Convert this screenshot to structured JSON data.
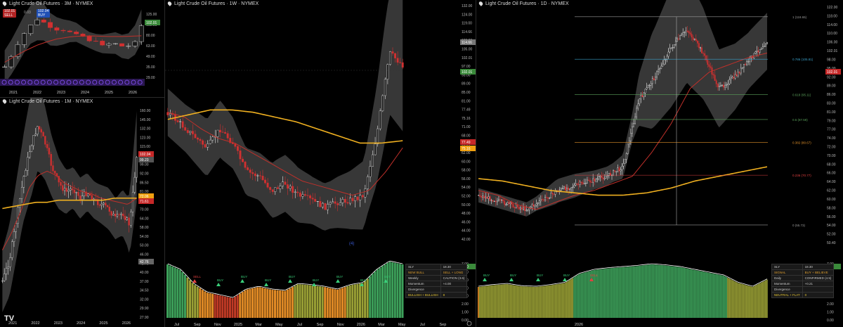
{
  "panels": {
    "q3": {
      "title": "Light Crude Oil Futures · 3M · NYMEX",
      "yticks": [
        "125.00",
        "102.01",
        "80.00",
        "63.00",
        "49.00",
        "35.00",
        "29.00"
      ],
      "xticks": [
        "2021",
        "2022",
        "2023",
        "2024",
        "2025",
        "2026"
      ],
      "sell": "102.01",
      "sell_label": "SELL",
      "buy": "102.04",
      "buy_label": "BUY",
      "spread": "0.03",
      "last": "102.01"
    },
    "m1": {
      "title": "Light Crude Oil Futures · 1M · NYMEX",
      "yticks": [
        "160.00",
        "145.00",
        "132.00",
        "123.00",
        "115.00",
        "107.00",
        "99.00",
        "92.00",
        "86.50",
        "81.00",
        "75.00",
        "70.00",
        "64.00",
        "58.00",
        "54.00",
        "50.00",
        "46.00",
        "42.75",
        "40.00",
        "37.00",
        "34.50",
        "32.00",
        "29.90",
        "27.90"
      ],
      "xticks": [
        "2021",
        "2022",
        "2023",
        "2024",
        "2025",
        "2026"
      ],
      "last": "102.04",
      "b1": "99.23",
      "b2": "72.06",
      "b3": "71.61",
      "b4": "42.76"
    },
    "w1": {
      "title": "Light Crude Oil Futures · 1W · NYMEX",
      "yticks": [
        "132.00",
        "124.00",
        "119.00",
        "114.66",
        "109.00",
        "105.00",
        "102.01",
        "97.00",
        "93.00",
        "89.00",
        "85.00",
        "81.00",
        "77.49",
        "75.16",
        "71.00",
        "68.00",
        "65.00",
        "62.00",
        "60.00",
        "58.00",
        "56.00",
        "54.00",
        "52.00",
        "50.00",
        "48.00",
        "46.00",
        "44.00",
        "42.00"
      ],
      "xticks": [
        "Jul",
        "Sep",
        "Nov",
        "2025",
        "Mar",
        "May",
        "Jul",
        "Sep",
        "Nov",
        "2026",
        "Mar",
        "May",
        "Jul",
        "Sep"
      ],
      "osc_ticks": [
        "7.00",
        "6.00",
        "5.00",
        "4.00",
        "3.00",
        "2.00",
        "1.00",
        "0.00"
      ],
      "last": "102.01",
      "hi": "114.66",
      "b1": "77.49",
      "b2": "75.16",
      "osc_last": "6.00",
      "wave": "(4)",
      "signals": [
        "SELL",
        "BUY",
        "BUY",
        "BUY",
        "BUY",
        "BUY",
        "BUY",
        "BUY",
        "BUY"
      ],
      "table": [
        [
          "SLY",
          "18.30"
        ],
        [
          "NEW BULL",
          "SELL + LONG"
        ],
        [
          "Weekly",
          "CAUTION (3.6)"
        ],
        [
          "Momentum",
          "+4.00"
        ],
        [
          "Divergence",
          ""
        ],
        [
          "BULLISH + BULLISH",
          "8"
        ]
      ]
    },
    "d1": {
      "title": "Light Crude Oil Futures · 1D · NYMEX",
      "yticks": [
        "122.00",
        "118.00",
        "114.00",
        "110.00",
        "106.00",
        "102.01",
        "98.00",
        "95.00",
        "92.00",
        "89.00",
        "86.00",
        "83.00",
        "81.00",
        "79.00",
        "77.00",
        "74.00",
        "72.00",
        "70.00",
        "68.00",
        "66.00",
        "64.00",
        "62.00",
        "60.00",
        "58.00",
        "56.00",
        "54.00",
        "52.00",
        "50.40"
      ],
      "xticks": [
        "2026"
      ],
      "osc_ticks": [
        "7.00",
        "6.00",
        "5.00",
        "4.00",
        "3.00",
        "2.00",
        "1.00",
        "0.00"
      ],
      "last": "102.01",
      "osc_last": "6.00",
      "fib": [
        {
          "label": "1 (118.65)",
          "v": 118.65,
          "c": "#9a9a9a"
        },
        {
          "label": "0.786 (105.81)",
          "v": 105.81,
          "c": "#3aa0c8"
        },
        {
          "label": "0.618 (95.11)",
          "v": 95.11,
          "c": "#5aa05a"
        },
        {
          "label": "0.5 (87.59)",
          "v": 87.59,
          "c": "#5aa05a"
        },
        {
          "label": "0.382 (80.67)",
          "v": 80.67,
          "c": "#e0902a"
        },
        {
          "label": "0.236 (70.77)",
          "v": 70.77,
          "c": "#e04040"
        },
        {
          "label": "0 (55.73)",
          "v": 55.73,
          "c": "#9a9a9a"
        }
      ],
      "signals": [
        "BUY",
        "BUY",
        "BUY",
        "BUY",
        "SELL"
      ],
      "table": [
        [
          "SLY",
          "18.30"
        ],
        [
          "SIGNAL",
          "BUY + BELIEVE"
        ],
        [
          "Daily",
          "CONFIRMED (4.5)"
        ],
        [
          "Momentum",
          "+0.21"
        ],
        [
          "Divergence",
          ""
        ],
        [
          "NEUTRAL + FLAT",
          "0"
        ]
      ]
    }
  },
  "chart_data": [
    {
      "type": "candlestick",
      "title": "Light Crude Oil Futures · 3M · NYMEX",
      "x": [
        "2021",
        "2022",
        "2023",
        "2024",
        "2025",
        "2026"
      ],
      "close": [
        75,
        80,
        72,
        72,
        62,
        102
      ],
      "last": 102.01
    },
    {
      "type": "candlestick",
      "title": "Light Crude Oil Futures · 1M · NYMEX",
      "x": [
        "2021",
        "2022",
        "2023",
        "2024",
        "2025",
        "2026"
      ],
      "close": [
        62,
        80,
        75,
        72,
        60,
        102
      ],
      "last": 102.04
    },
    {
      "type": "candlestick",
      "title": "Light Crude Oil Futures · 1W · NYMEX",
      "x": [
        "Jul",
        "Sep",
        "Nov",
        "2025",
        "Mar",
        "May",
        "Jul",
        "Sep",
        "Nov",
        "2026",
        "Mar",
        "May"
      ],
      "close": [
        82,
        73,
        69,
        72,
        67,
        60,
        64,
        62,
        59,
        65,
        110,
        102
      ],
      "last": 102.01
    },
    {
      "type": "candlestick",
      "title": "Light Crude Oil Futures · 1D · NYMEX",
      "x": [
        "2026"
      ],
      "close": [
        61,
        58,
        63,
        66,
        85,
        95,
        112,
        105,
        90,
        102
      ],
      "last": 102.01
    }
  ]
}
